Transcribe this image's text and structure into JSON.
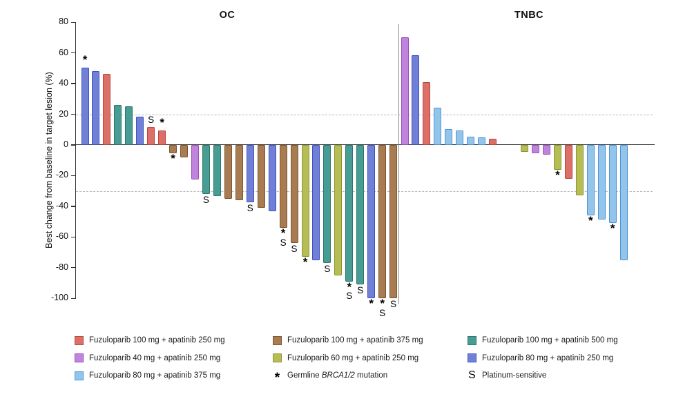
{
  "chart_data": {
    "type": "bar",
    "subtype": "waterfall",
    "title": "",
    "ylabel": "Best change from baseline in target lesion (%)",
    "y_axis": {
      "ticks": [
        80,
        60,
        40,
        20,
        0,
        -20,
        -40,
        -60,
        -80,
        -100
      ],
      "range": [
        -100,
        80
      ]
    },
    "reference_lines": [
      20,
      -30
    ],
    "grid": false,
    "legend_position": "bottom",
    "groups": {
      "f100a250": {
        "label": "Fuzuloparib 100 mg + apatinib 250 mg",
        "fill": "#DC7068",
        "border": "#B8463E"
      },
      "f100a375": {
        "label": "Fuzuloparib 100 mg + apatinib 375 mg",
        "fill": "#A87C50",
        "border": "#7A5430"
      },
      "f100a500": {
        "label": "Fuzuloparib 100 mg + apatinib 500 mg",
        "fill": "#479D93",
        "border": "#2E746B"
      },
      "f40a250": {
        "label": "Fuzuloparib 40 mg + apatinib 250 mg",
        "fill": "#C084DC",
        "border": "#9850BE"
      },
      "f60a250": {
        "label": "Fuzuloparib 60 mg + apatinib 250 mg",
        "fill": "#B6BD55",
        "border": "#8C9530"
      },
      "f80a250": {
        "label": "Fuzuloparib 80 mg + apatinib 250 mg",
        "fill": "#7080D6",
        "border": "#4050C0"
      },
      "f80a375": {
        "label": "Fuzuloparib 80 mg + apatinib 375 mg",
        "fill": "#93C4EA",
        "border": "#4E95DA"
      }
    },
    "panels": [
      {
        "title": "OC",
        "bars": [
          {
            "value": 50.5,
            "group": "f80a250",
            "markers": [
              "*"
            ]
          },
          {
            "value": 48,
            "group": "f80a250"
          },
          {
            "value": 46.5,
            "group": "f100a250"
          },
          {
            "value": 26,
            "group": "f100a500"
          },
          {
            "value": 25,
            "group": "f100a500"
          },
          {
            "value": 18.5,
            "group": "f80a250"
          },
          {
            "value": 11.5,
            "group": "f100a250",
            "markers": [
              "S"
            ]
          },
          {
            "value": 9.5,
            "group": "f100a250",
            "markers": [
              "*"
            ]
          },
          {
            "value": -5.5,
            "group": "f100a375",
            "markers": [
              "*"
            ]
          },
          {
            "value": -8,
            "group": "f100a375"
          },
          {
            "value": -22.5,
            "group": "f40a250"
          },
          {
            "value": -32,
            "group": "f100a500",
            "markers": [
              "S"
            ]
          },
          {
            "value": -33.5,
            "group": "f100a500"
          },
          {
            "value": -35,
            "group": "f100a375"
          },
          {
            "value": -36,
            "group": "f100a375"
          },
          {
            "value": -37.5,
            "group": "f80a250",
            "markers": [
              "S"
            ]
          },
          {
            "value": -41,
            "group": "f100a375"
          },
          {
            "value": -43,
            "group": "f80a250"
          },
          {
            "value": -54,
            "group": "f100a375",
            "markers": [
              "*",
              "S"
            ]
          },
          {
            "value": -64,
            "group": "f100a375",
            "markers": [
              "S"
            ]
          },
          {
            "value": -73,
            "group": "f60a250",
            "markers": [
              "*"
            ]
          },
          {
            "value": -75,
            "group": "f80a250"
          },
          {
            "value": -77,
            "group": "f100a500",
            "markers": [
              "S"
            ]
          },
          {
            "value": -85,
            "group": "f60a250"
          },
          {
            "value": -89,
            "group": "f100a500",
            "markers": [
              "*",
              "S"
            ]
          },
          {
            "value": -91,
            "group": "f100a500",
            "markers": [
              "S"
            ]
          },
          {
            "value": -100,
            "group": "f80a250",
            "markers": [
              "*"
            ]
          },
          {
            "value": -100,
            "group": "f100a375",
            "markers": [
              "*",
              "S"
            ]
          },
          {
            "value": -100,
            "group": "f100a375",
            "markers": [
              "S"
            ]
          }
        ]
      },
      {
        "title": "TNBC",
        "bars": [
          {
            "value": 70,
            "group": "f40a250"
          },
          {
            "value": 58.5,
            "group": "f80a250"
          },
          {
            "value": 41,
            "group": "f100a250"
          },
          {
            "value": 24.5,
            "group": "f80a375"
          },
          {
            "value": 10.5,
            "group": "f80a375"
          },
          {
            "value": 9.5,
            "group": "f80a375"
          },
          {
            "value": 5.5,
            "group": "f80a375"
          },
          {
            "value": 5,
            "group": "f80a375"
          },
          {
            "value": 4,
            "group": "f100a250"
          },
          {
            "value": -4.5,
            "group": "f60a250",
            "gap_before": true
          },
          {
            "value": -5.5,
            "group": "f40a250"
          },
          {
            "value": -6.5,
            "group": "f40a250"
          },
          {
            "value": -16,
            "group": "f60a250",
            "markers": [
              "*"
            ]
          },
          {
            "value": -22,
            "group": "f100a250"
          },
          {
            "value": -33,
            "group": "f60a250"
          },
          {
            "value": -46,
            "group": "f80a375",
            "markers": [
              "*"
            ]
          },
          {
            "value": -48.5,
            "group": "f80a375"
          },
          {
            "value": -51,
            "group": "f80a375",
            "markers": [
              "*"
            ]
          },
          {
            "value": -75,
            "group": "f80a375"
          }
        ]
      }
    ],
    "legend": {
      "columns": [
        [
          {
            "type": "swatch",
            "group": "f100a250"
          },
          {
            "type": "swatch",
            "group": "f40a250"
          },
          {
            "type": "swatch",
            "group": "f80a375"
          }
        ],
        [
          {
            "type": "swatch",
            "group": "f100a375"
          },
          {
            "type": "swatch",
            "group": "f60a250"
          },
          {
            "type": "marker",
            "symbol": "*",
            "parts": [
              {
                "t": "Germline "
              },
              {
                "t": "BRCA1/2",
                "i": true
              },
              {
                "t": " mutation"
              }
            ]
          }
        ],
        [
          {
            "type": "swatch",
            "group": "f100a500"
          },
          {
            "type": "swatch",
            "group": "f80a250"
          },
          {
            "type": "marker",
            "symbol": "S",
            "parts": [
              {
                "t": "Platinum-sensitive"
              }
            ]
          }
        ]
      ]
    }
  }
}
